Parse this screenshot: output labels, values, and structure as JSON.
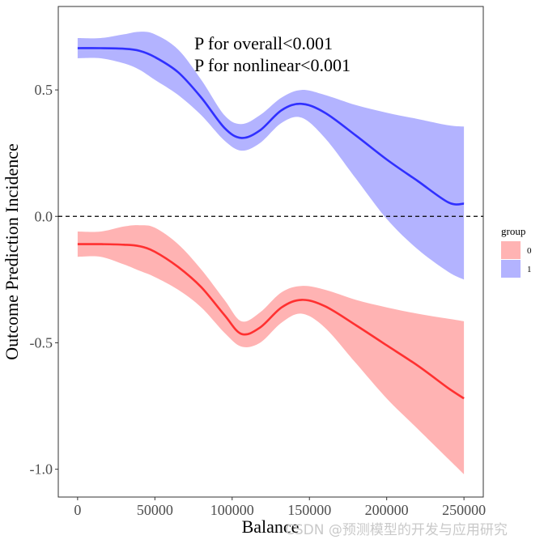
{
  "chart_data": {
    "type": "line",
    "xlabel": "Balance",
    "ylabel": "Outcome Prediction Incidence",
    "xlim": [
      -12500,
      262500
    ],
    "ylim": [
      -1.11,
      0.83
    ],
    "x_ticks": [
      0,
      50000,
      100000,
      150000,
      200000,
      250000
    ],
    "x_tick_labels": [
      "0",
      "50000",
      "100000",
      "150000",
      "200000",
      "250000"
    ],
    "y_ticks": [
      0.5,
      0.0,
      -0.5,
      -1.0
    ],
    "y_tick_labels": [
      "0.5",
      "0.0",
      "-0.5",
      "-1.0"
    ],
    "reference_line": {
      "y": 0,
      "style": "dashed"
    },
    "annotations": [
      "P for overall<0.001",
      "P for nonlinear<0.001"
    ],
    "legend": {
      "title": "group",
      "position": "right",
      "entries": [
        "0",
        "1"
      ]
    },
    "series": [
      {
        "name": "0",
        "line_color": "#ff3030",
        "ribbon_color": "#ffb3b3",
        "x": [
          0,
          15000,
          30000,
          40000,
          50000,
          65000,
          80000,
          95000,
          106000,
          118000,
          132000,
          145000,
          160000,
          180000,
          200000,
          220000,
          240000,
          250000
        ],
        "y": [
          -0.11,
          -0.11,
          -0.112,
          -0.118,
          -0.14,
          -0.2,
          -0.28,
          -0.39,
          -0.465,
          -0.44,
          -0.36,
          -0.33,
          -0.355,
          -0.43,
          -0.51,
          -0.59,
          -0.68,
          -0.72
        ],
        "lower": [
          -0.16,
          -0.16,
          -0.19,
          -0.215,
          -0.24,
          -0.29,
          -0.36,
          -0.46,
          -0.515,
          -0.5,
          -0.42,
          -0.385,
          -0.44,
          -0.58,
          -0.72,
          -0.84,
          -0.96,
          -1.02
        ],
        "upper": [
          -0.06,
          -0.06,
          -0.04,
          -0.035,
          -0.045,
          -0.11,
          -0.21,
          -0.33,
          -0.415,
          -0.38,
          -0.3,
          -0.275,
          -0.29,
          -0.33,
          -0.36,
          -0.385,
          -0.405,
          -0.415
        ]
      },
      {
        "name": "1",
        "line_color": "#3030ff",
        "ribbon_color": "#b3b3ff",
        "x": [
          0,
          15000,
          30000,
          40000,
          50000,
          65000,
          80000,
          95000,
          106000,
          118000,
          132000,
          145000,
          160000,
          180000,
          200000,
          220000,
          240000,
          250000
        ],
        "y": [
          0.665,
          0.665,
          0.663,
          0.655,
          0.63,
          0.57,
          0.47,
          0.35,
          0.31,
          0.34,
          0.42,
          0.445,
          0.41,
          0.32,
          0.225,
          0.14,
          0.055,
          0.05
        ],
        "lower": [
          0.625,
          0.625,
          0.605,
          0.58,
          0.54,
          0.48,
          0.4,
          0.3,
          0.26,
          0.29,
          0.37,
          0.39,
          0.31,
          0.15,
          -0.01,
          -0.13,
          -0.22,
          -0.25
        ],
        "upper": [
          0.705,
          0.705,
          0.72,
          0.73,
          0.72,
          0.66,
          0.54,
          0.4,
          0.365,
          0.4,
          0.47,
          0.5,
          0.48,
          0.44,
          0.41,
          0.385,
          0.36,
          0.355
        ]
      }
    ]
  },
  "watermark": "CSDN @预测模型的开发与应用研究"
}
